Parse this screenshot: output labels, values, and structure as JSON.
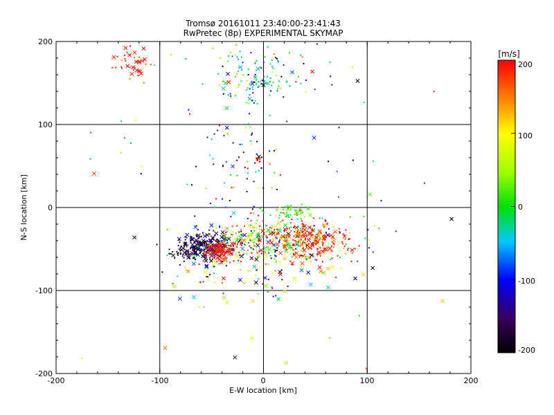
{
  "chart_data": {
    "type": "scatter",
    "title": "Tromsø 20161011 23:40:00-23:41:43",
    "subtitle": "RwPretec (8p) EXPERIMENTAL SKYMAP",
    "xlabel": "E-W location [km]",
    "ylabel": "N-S location [km]",
    "xlim": [
      -200,
      200
    ],
    "ylim": [
      -200,
      200
    ],
    "xticks": [
      "-200",
      "-100",
      "0",
      "100",
      "200"
    ],
    "yticks": [
      "-200",
      "-100",
      "0",
      "100",
      "200"
    ],
    "grid_lines": [
      -100,
      0,
      100
    ],
    "grid": true,
    "colorbar": {
      "label": "[m/s]",
      "min": -200,
      "max": 200,
      "ticks": [
        "200",
        "100",
        "0",
        "-100",
        "-200"
      ]
    },
    "symbols": {
      "dot": "small dot",
      "cross": "x"
    },
    "clusters": [
      {
        "name": "upper-left red group",
        "x": -125,
        "y": 175,
        "sx": 8,
        "sy": 10,
        "n": 40,
        "v": 180,
        "vs": 25,
        "crosses": 0.5
      },
      {
        "name": "upper center cyan group",
        "x": -10,
        "y": 155,
        "sx": 18,
        "sy": 20,
        "n": 90,
        "v": -30,
        "vs": 60,
        "crosses": 0.05
      },
      {
        "name": "upper center scattered",
        "x": 10,
        "y": 165,
        "sx": 40,
        "sy": 25,
        "n": 50,
        "v": -60,
        "vs": 120,
        "crosses": 0.1
      },
      {
        "name": "mid vertical column",
        "x": -20,
        "y": 60,
        "sx": 18,
        "sy": 40,
        "n": 70,
        "v": -80,
        "vs": 120,
        "crosses": 0.05
      },
      {
        "name": "red blob at 60km",
        "x": -6,
        "y": 58,
        "sx": 2,
        "sy": 2,
        "n": 10,
        "v": 200,
        "vs": 5,
        "crosses": 0
      },
      {
        "name": "green patch",
        "x": 25,
        "y": -5,
        "sx": 10,
        "sy": 4,
        "n": 45,
        "v": 20,
        "vs": 30,
        "crosses": 0.15
      },
      {
        "name": "main band center",
        "x": 5,
        "y": -40,
        "sx": 35,
        "sy": 15,
        "n": 380,
        "v": 60,
        "vs": 140,
        "crosses": 0.2
      },
      {
        "name": "main band east red",
        "x": 45,
        "y": -40,
        "sx": 18,
        "sy": 12,
        "n": 200,
        "v": 185,
        "vs": 25,
        "crosses": 0.25
      },
      {
        "name": "main band west black",
        "x": -60,
        "y": -48,
        "sx": 14,
        "sy": 9,
        "n": 260,
        "v": -170,
        "vs": 40,
        "crosses": 0.3
      },
      {
        "name": "main band west red blob",
        "x": -42,
        "y": -52,
        "sx": 6,
        "sy": 5,
        "n": 90,
        "v": 190,
        "vs": 15,
        "crosses": 0.5
      },
      {
        "name": "main band lower scatter",
        "x": -10,
        "y": -75,
        "sx": 40,
        "sy": 14,
        "n": 90,
        "v": 20,
        "vs": 150,
        "crosses": 0.3
      },
      {
        "name": "field scatter",
        "x": 0,
        "y": 0,
        "sx": 110,
        "sy": 110,
        "n": 90,
        "v": 40,
        "vs": 160,
        "crosses": 0.3
      }
    ]
  }
}
